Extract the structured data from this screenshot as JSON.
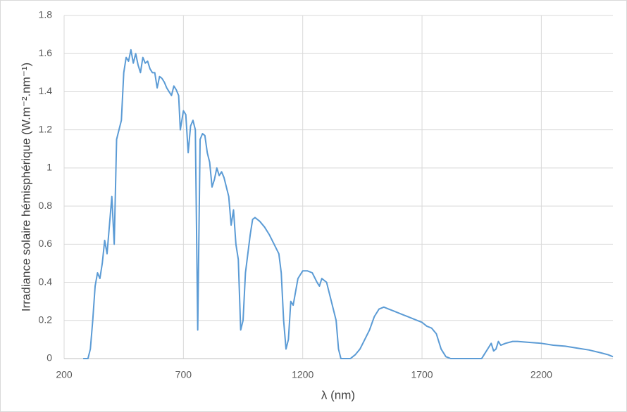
{
  "chart_data": {
    "type": "line",
    "x_label": "λ (nm)",
    "y_label": "Irradiance solaire hémisphérique (W.m⁻².nm⁻¹)",
    "xlim": [
      200,
      2500
    ],
    "xticks": [
      200,
      700,
      1200,
      1700,
      2200
    ],
    "ylim": [
      0,
      1.8
    ],
    "yticks": [
      0,
      0.2,
      0.4,
      0.6,
      0.8,
      1,
      1.2,
      1.4,
      1.6,
      1.8
    ],
    "grid": true,
    "series": [
      {
        "color": "#5b9bd5",
        "x": [
          280,
          300,
          310,
          320,
          330,
          340,
          350,
          360,
          370,
          380,
          390,
          400,
          410,
          420,
          430,
          440,
          450,
          460,
          470,
          480,
          490,
          500,
          510,
          520,
          530,
          540,
          550,
          560,
          570,
          580,
          590,
          600,
          610,
          620,
          630,
          640,
          650,
          660,
          670,
          680,
          687,
          700,
          710,
          720,
          730,
          740,
          750,
          760,
          770,
          780,
          790,
          800,
          810,
          820,
          830,
          840,
          850,
          860,
          870,
          880,
          890,
          900,
          910,
          920,
          930,
          940,
          950,
          960,
          970,
          980,
          990,
          1000,
          1020,
          1040,
          1060,
          1080,
          1100,
          1110,
          1120,
          1130,
          1140,
          1150,
          1160,
          1170,
          1180,
          1200,
          1220,
          1240,
          1260,
          1270,
          1280,
          1300,
          1320,
          1340,
          1350,
          1360,
          1400,
          1420,
          1440,
          1460,
          1480,
          1500,
          1520,
          1540,
          1560,
          1580,
          1600,
          1620,
          1640,
          1660,
          1680,
          1700,
          1720,
          1740,
          1760,
          1780,
          1800,
          1820,
          1950,
          1960,
          1980,
          1990,
          2000,
          2010,
          2020,
          2030,
          2050,
          2080,
          2100,
          2150,
          2200,
          2250,
          2300,
          2350,
          2400,
          2450,
          2480,
          2500
        ],
        "values": [
          0,
          0,
          0.05,
          0.2,
          0.38,
          0.45,
          0.42,
          0.5,
          0.62,
          0.55,
          0.7,
          0.85,
          0.6,
          1.15,
          1.2,
          1.25,
          1.5,
          1.58,
          1.56,
          1.62,
          1.55,
          1.6,
          1.54,
          1.5,
          1.58,
          1.55,
          1.56,
          1.52,
          1.5,
          1.5,
          1.42,
          1.48,
          1.47,
          1.45,
          1.42,
          1.4,
          1.38,
          1.43,
          1.41,
          1.38,
          1.2,
          1.3,
          1.28,
          1.08,
          1.22,
          1.25,
          1.2,
          0.15,
          1.15,
          1.18,
          1.17,
          1.08,
          1.03,
          0.9,
          0.94,
          1.0,
          0.96,
          0.98,
          0.95,
          0.9,
          0.85,
          0.7,
          0.78,
          0.6,
          0.52,
          0.15,
          0.2,
          0.45,
          0.55,
          0.65,
          0.73,
          0.74,
          0.72,
          0.69,
          0.65,
          0.6,
          0.55,
          0.45,
          0.2,
          0.05,
          0.1,
          0.3,
          0.28,
          0.35,
          0.42,
          0.46,
          0.46,
          0.45,
          0.4,
          0.38,
          0.42,
          0.4,
          0.3,
          0.2,
          0.05,
          0,
          0,
          0.02,
          0.05,
          0.1,
          0.15,
          0.22,
          0.26,
          0.27,
          0.26,
          0.25,
          0.24,
          0.23,
          0.22,
          0.21,
          0.2,
          0.19,
          0.17,
          0.16,
          0.13,
          0.05,
          0.01,
          0,
          0,
          0.02,
          0.06,
          0.08,
          0.04,
          0.05,
          0.09,
          0.07,
          0.08,
          0.09,
          0.09,
          0.085,
          0.08,
          0.07,
          0.065,
          0.055,
          0.045,
          0.03,
          0.02,
          0.01
        ]
      }
    ]
  }
}
